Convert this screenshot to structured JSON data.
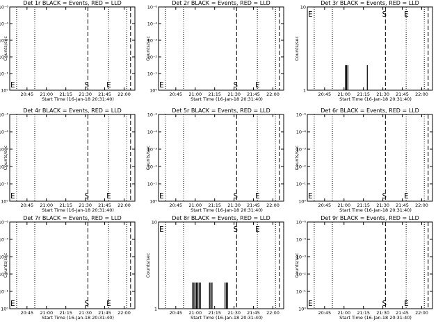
{
  "chart_data": [
    {
      "type": "line",
      "title": "Det 1r BLACK = Events, RED = LLD",
      "xlabel": "Start Time (16-Jan-18 20:31:40)",
      "ylabel": "Counts/sec",
      "y_ticks": [
        "10⁻⁶",
        "10⁻⁴",
        "10⁻³",
        "10⁻²",
        "10⁻¹",
        "10⁰"
      ],
      "x_ticks": [
        "20:45",
        "21:00",
        "21:15",
        "21:30",
        "21:45",
        "22:00"
      ],
      "e_label": "E",
      "s_label": "S",
      "bars": []
    },
    {
      "type": "line",
      "title": "Det 2r BLACK = Events, RED = LLD",
      "xlabel": "Start Time (16-Jan-18 20:31:40)",
      "ylabel": "Counts/sec",
      "y_ticks": [
        "10⁻⁶",
        "10⁻⁴",
        "10⁻³",
        "10⁻²",
        "10⁻¹",
        "10⁰"
      ],
      "x_ticks": [
        "20:45",
        "21:00",
        "21:15",
        "21:30",
        "21:45",
        "22:00"
      ],
      "e_label": "E",
      "s_label": "S",
      "bars": []
    },
    {
      "type": "line",
      "title": "Det 3r BLACK = Events, RED = LLD",
      "xlabel": "Start Time (16-Jan-18 20:31:40)",
      "ylabel": "Counts/sec",
      "y_ticks": [
        "10",
        "1"
      ],
      "log_top": 1,
      "x_ticks": [
        "20:45",
        "21:00",
        "21:15",
        "21:30",
        "21:45",
        "22:00"
      ],
      "e_label": "E",
      "s_label": "S",
      "bars": [
        {
          "x": "21:01",
          "y": 2
        },
        {
          "x": "21:02",
          "y": 2
        },
        {
          "x": "21:03",
          "y": 2
        },
        {
          "x": "21:18",
          "y": 2
        }
      ]
    },
    {
      "type": "line",
      "title": "Det 4r BLACK = Events, RED = LLD",
      "xlabel": "Start Time (16-Jan-18 20:31:40)",
      "ylabel": "Counts/sec",
      "y_ticks": [
        "10⁻⁶",
        "10⁻⁴",
        "10⁻³",
        "10⁻²",
        "10⁻¹",
        "10⁰"
      ],
      "x_ticks": [
        "20:45",
        "21:00",
        "21:15",
        "21:30",
        "21:45",
        "22:00"
      ],
      "e_label": "E",
      "s_label": "S",
      "bars": []
    },
    {
      "type": "line",
      "title": "Det 5r BLACK = Events, RED = LLD",
      "xlabel": "Start Time (16-Jan-18 20:31:40)",
      "ylabel": "Counts/sec",
      "y_ticks": [
        "10⁻⁶",
        "10⁻⁴",
        "10⁻³",
        "10⁻²",
        "10⁻¹",
        "10⁰"
      ],
      "x_ticks": [
        "20:45",
        "21:00",
        "21:15",
        "21:30",
        "21:45",
        "22:00"
      ],
      "e_label": "E",
      "s_label": "S",
      "bars": []
    },
    {
      "type": "line",
      "title": "Det 6r BLACK = Events, RED = LLD",
      "xlabel": "Start Time (16-Jan-18 20:31:40)",
      "ylabel": "Counts/sec",
      "y_ticks": [
        "10⁻⁶",
        "10⁻⁴",
        "10⁻³",
        "10⁻²",
        "10⁻¹",
        "10⁰"
      ],
      "x_ticks": [
        "20:45",
        "21:00",
        "21:15",
        "21:30",
        "21:45",
        "22:00"
      ],
      "e_label": "E",
      "s_label": "S",
      "bars": []
    },
    {
      "type": "line",
      "title": "Det 7r BLACK = Events, RED = LLD",
      "xlabel": "Start Time (16-Jan-18 20:31:40)",
      "ylabel": "Counts/sec",
      "y_ticks": [
        "10⁻⁶",
        "10⁻⁴",
        "10⁻³",
        "10⁻²",
        "10⁻¹",
        "10⁰"
      ],
      "x_ticks": [
        "20:45",
        "21:00",
        "21:15",
        "21:30",
        "21:45",
        "22:00"
      ],
      "e_label": "E",
      "s_label": "S",
      "bars": []
    },
    {
      "type": "line",
      "title": "Det 8r BLACK = Events, RED = LLD",
      "xlabel": "Start Time (16-Jan-18 20:31:40)",
      "ylabel": "Counts/sec",
      "y_ticks": [
        "10",
        "1"
      ],
      "log_top": 1,
      "x_ticks": [
        "20:45",
        "21:00",
        "21:15",
        "21:30",
        "21:45",
        "22:00"
      ],
      "e_label": "E",
      "s_label": "S",
      "bars": [
        {
          "x": "20:58",
          "y": 2
        },
        {
          "x": "20:59",
          "y": 2
        },
        {
          "x": "21:00",
          "y": 2
        },
        {
          "x": "21:01",
          "y": 2
        },
        {
          "x": "21:02",
          "y": 2
        },
        {
          "x": "21:03",
          "y": 2
        },
        {
          "x": "21:04",
          "y": 2
        },
        {
          "x": "21:11",
          "y": 2
        },
        {
          "x": "21:12",
          "y": 2
        },
        {
          "x": "21:13",
          "y": 2
        },
        {
          "x": "21:23",
          "y": 2
        },
        {
          "x": "21:24",
          "y": 2
        },
        {
          "x": "21:25",
          "y": 2
        }
      ]
    },
    {
      "type": "line",
      "title": "Det 9r BLACK = Events, RED = LLD",
      "xlabel": "Start Time (16-Jan-18 20:31:40)",
      "ylabel": "Counts/sec",
      "y_ticks": [
        "10⁻⁶",
        "10⁻⁴",
        "10⁻³",
        "10⁻²",
        "10⁻¹",
        "10⁰"
      ],
      "x_ticks": [
        "20:45",
        "21:00",
        "21:15",
        "21:30",
        "21:45",
        "22:00"
      ],
      "e_label": "E",
      "s_label": "S",
      "bars": []
    }
  ],
  "x_range": [
    "20:31:40",
    "22:08:20"
  ],
  "vlines": {
    "dotted": [
      "20:37",
      "20:51",
      "21:48",
      "22:02"
    ],
    "dashed": [
      "21:32",
      "22:05"
    ]
  },
  "colors": {
    "axes": "#000000",
    "events": "#000000",
    "lld": "#ff0000"
  }
}
